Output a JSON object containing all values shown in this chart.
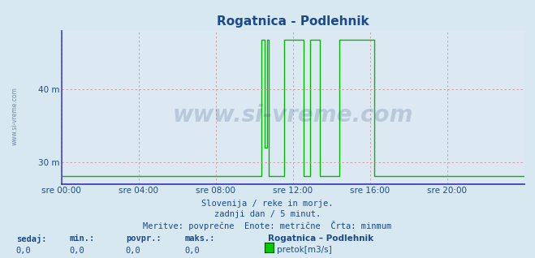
{
  "title": "Rogatnica - Podlehnik",
  "title_color": "#1a4a8a",
  "bg_color": "#d8e8f0",
  "plot_bg_color": "#dce9f2",
  "grid_color": "#cc9999",
  "axis_left_color": "#4444cc",
  "axis_bottom_color": "#3333bb",
  "x_arrow_color": "#aa2222",
  "y_arrow_color": "#aa2222",
  "line_color": "#00bb00",
  "line_width": 1.0,
  "ylim": [
    27.0,
    48.0
  ],
  "yticks": [
    30,
    40
  ],
  "ytick_labels": [
    "30 m",
    "40 m"
  ],
  "xtick_labels": [
    "sre 00:00",
    "sre 04:00",
    "sre 08:00",
    "sre 12:00",
    "sre 16:00",
    "sre 20:00"
  ],
  "xtick_positions": [
    0,
    4,
    8,
    12,
    16,
    20
  ],
  "xlim": [
    0,
    24
  ],
  "watermark": "www.si-vreme.com",
  "watermark_color": "#1a3a7a",
  "watermark_alpha": 0.18,
  "watermark_vertical": "www.si-vreme.com",
  "subtitle1": "Slovenija / reke in morje.",
  "subtitle2": "zadnji dan / 5 minut.",
  "subtitle3": "Meritve: povprečne  Enote: metrične  Črta: minmum",
  "subtitle_color": "#1a4a8a",
  "legend_station": "Rogatnica – Podlehnik",
  "legend_label": "pretok[m3/s]",
  "legend_color": "#00cc00",
  "stats_labels": [
    "sedaj:",
    "min.:",
    "povpr.:",
    "maks.:"
  ],
  "stats_values": [
    "0,0",
    "0,0",
    "0,0",
    "0,0"
  ],
  "font_color": "#1a4a8a",
  "baseline": 28.2,
  "spikes": [
    {
      "x": [
        10.35,
        10.35,
        10.55,
        10.55,
        10.65,
        10.65,
        10.75,
        10.75,
        11.05,
        11.05
      ],
      "y": [
        28.2,
        46.8,
        46.8,
        32.0,
        32.0,
        46.8,
        46.8,
        28.2,
        28.2,
        28.2
      ]
    },
    {
      "x": [
        11.55,
        11.55,
        11.65,
        11.65,
        12.55,
        12.55
      ],
      "y": [
        28.2,
        46.8,
        46.8,
        46.8,
        46.8,
        28.2
      ]
    },
    {
      "x": [
        12.9,
        12.9,
        13.0,
        13.0,
        13.45,
        13.45
      ],
      "y": [
        28.2,
        46.8,
        46.8,
        46.8,
        46.8,
        28.2
      ]
    },
    {
      "x": [
        14.4,
        14.4,
        14.5,
        14.5,
        16.2,
        16.2
      ],
      "y": [
        28.2,
        46.8,
        46.8,
        46.8,
        46.8,
        28.2
      ]
    }
  ]
}
